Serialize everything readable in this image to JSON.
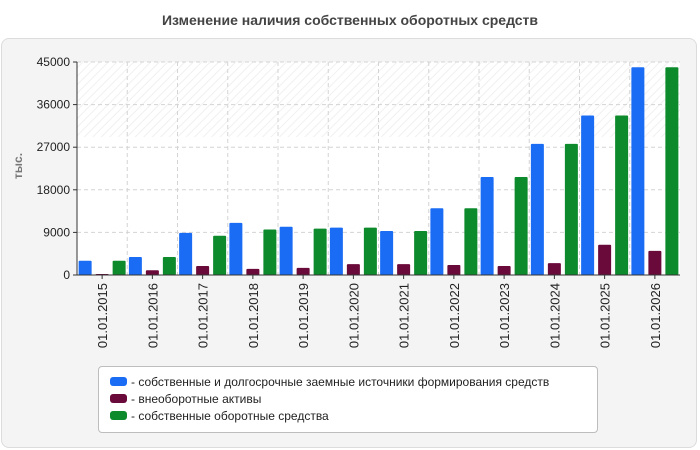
{
  "title": "Изменение наличия собственных оборотных средств",
  "chart_data": {
    "type": "bar",
    "ylabel": "тыс.",
    "ylim": [
      0,
      45000
    ],
    "yticks": [
      0,
      9000,
      18000,
      27000,
      36000,
      45000
    ],
    "categories": [
      "01.01.2015",
      "01.01.2016",
      "01.01.2017",
      "01.01.2018",
      "01.01.2019",
      "01.01.2020",
      "01.01.2021",
      "01.01.2022",
      "01.01.2023",
      "01.01.2024",
      "01.01.2025",
      "01.01.2026"
    ],
    "series": [
      {
        "name": "- собственные и долгосрочные заемные источники формирования средств",
        "color": "#1a6cf5",
        "values": [
          3000,
          3800,
          8900,
          11000,
          10200,
          10000,
          9300,
          14100,
          20700,
          27700,
          33700,
          43900
        ]
      },
      {
        "name": "- внеоборотные активы",
        "color": "#6a0a3a",
        "values": [
          200,
          1000,
          1900,
          1300,
          1500,
          2300,
          2300,
          2100,
          1900,
          2500,
          6400,
          5100
        ]
      },
      {
        "name": "- собственные оборотные средства",
        "color": "#0c8a2c",
        "values": [
          3000,
          3800,
          8300,
          9600,
          9800,
          10000,
          9300,
          14100,
          20700,
          27700,
          33700,
          43900
        ]
      }
    ],
    "grid": true,
    "legend": "bottom"
  }
}
